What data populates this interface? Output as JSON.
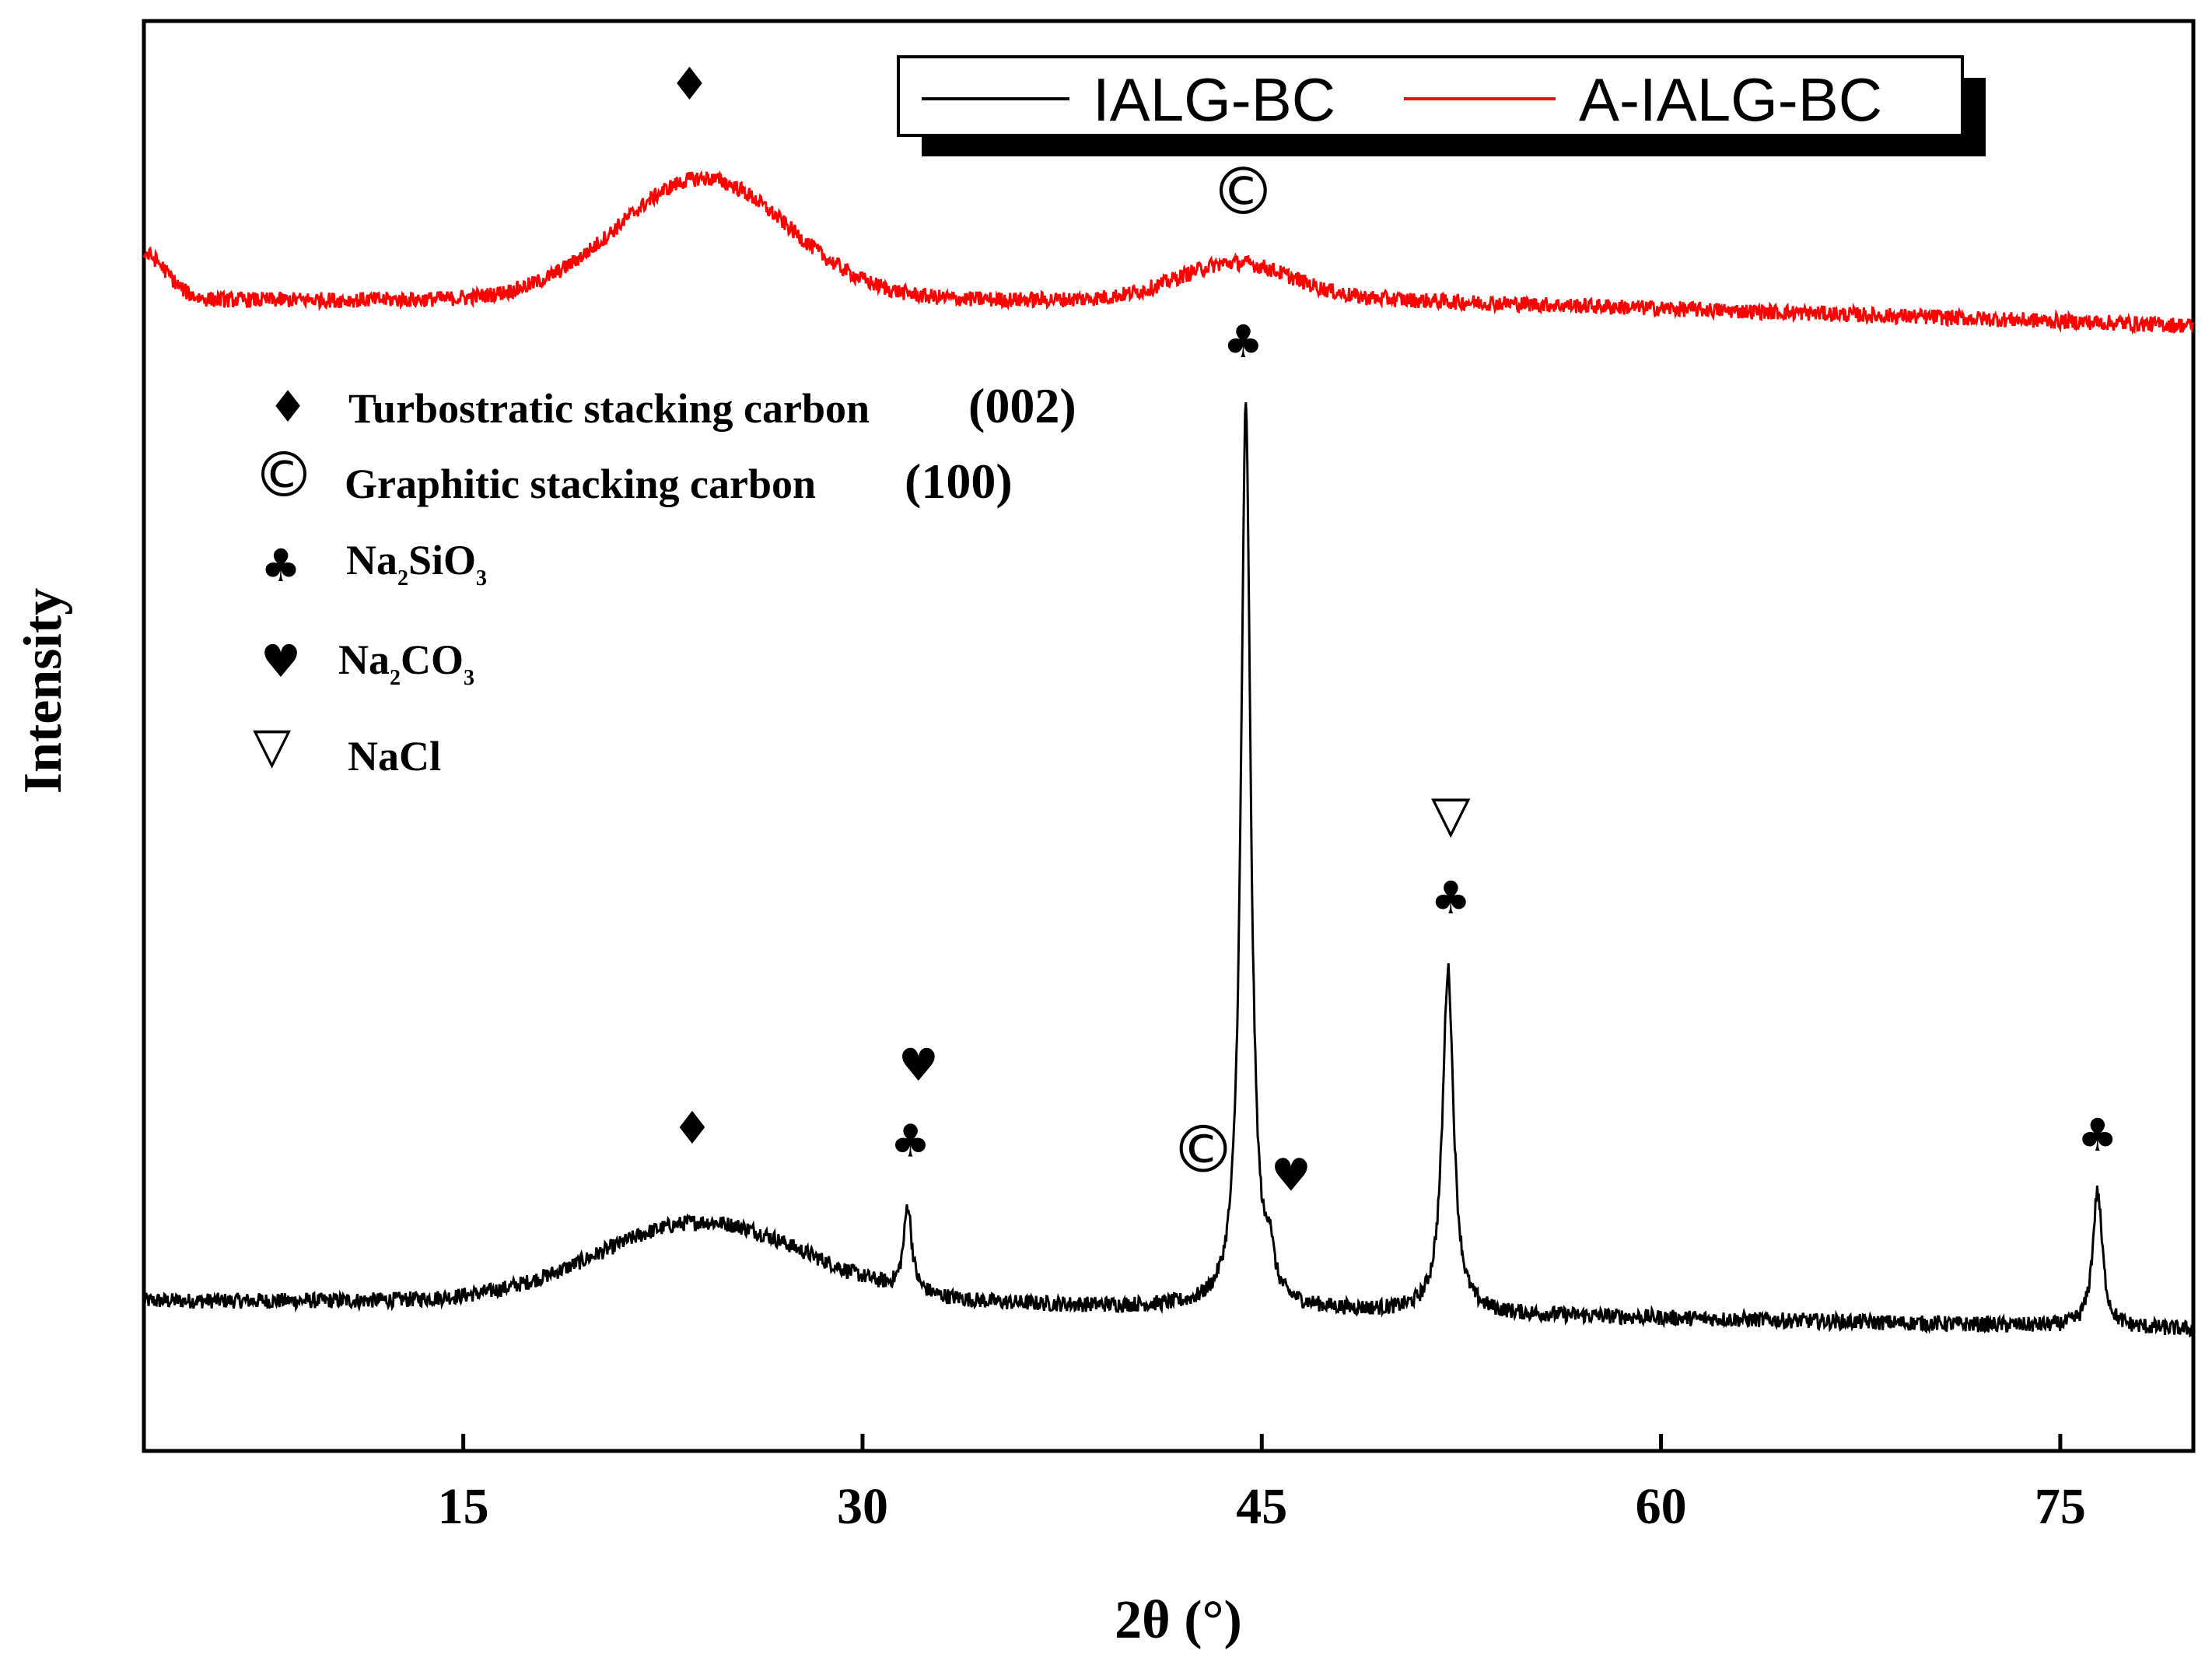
{
  "chart_data": {
    "type": "line",
    "title": "",
    "xlabel": "2θ (°)",
    "ylabel": "Intensity",
    "xlim": [
      3,
      80
    ],
    "ylim": [
      0,
      100
    ],
    "x_ticks": [
      15,
      30,
      45,
      60,
      75
    ],
    "x_tick_labels": [
      "15",
      "30",
      "45",
      "60",
      "75"
    ],
    "legend": {
      "placement": "top-right",
      "entries": [
        {
          "name": "IALG-BC",
          "color": "#000000"
        },
        {
          "name": "A-IALG-BC",
          "color": "#ff0000"
        }
      ]
    },
    "series": [
      {
        "name": "IALG-BC",
        "color": "#000000",
        "baseline": 10.5,
        "tail_slope": -0.04,
        "humps": [
          {
            "center": 24,
            "height": 5.5,
            "width": 5.5
          }
        ],
        "peaks": [
          {
            "x": 31.7,
            "height": 6.0,
            "width": 0.18
          },
          {
            "x": 44.4,
            "height": 63.0,
            "width": 0.22
          },
          {
            "x": 45.3,
            "height": 3.0,
            "width": 0.15
          },
          {
            "x": 52.0,
            "height": 24.0,
            "width": 0.25
          },
          {
            "x": 76.4,
            "height": 9.5,
            "width": 0.22
          }
        ]
      },
      {
        "name": "A-IALG-BC",
        "color": "#ff0000",
        "baseline": 80.5,
        "humps": [
          {
            "center": 24,
            "height": 8.5,
            "width": 4.5
          },
          {
            "center": 44,
            "height": 2.6,
            "width": 3.0
          }
        ]
      }
    ],
    "annotations": [
      {
        "symbol": "♦",
        "name": "turbostratic-marker",
        "x": 23.5,
        "y": 94.5
      },
      {
        "symbol": "©",
        "name": "graphitic-marker",
        "x": 44.3,
        "y": 86.5
      },
      {
        "symbol": "♣",
        "name": "na2sio3-marker",
        "x": 44.3,
        "y": 76.5
      },
      {
        "symbol": "▽",
        "name": "nacl-marker",
        "x": 52.1,
        "y": 43.3
      },
      {
        "symbol": "♣",
        "name": "na2sio3-marker",
        "x": 52.1,
        "y": 37.6
      },
      {
        "symbol": "♥",
        "name": "na2co3-marker",
        "x": 32.1,
        "y": 25.9
      },
      {
        "symbol": "♣",
        "name": "na2sio3-marker",
        "x": 31.8,
        "y": 20.6
      },
      {
        "symbol": "♦",
        "name": "turbostratic-marker",
        "x": 23.6,
        "y": 21.5
      },
      {
        "symbol": "©",
        "name": "graphitic-marker",
        "x": 42.8,
        "y": 19.5
      },
      {
        "symbol": "♥",
        "name": "na2co3-marker",
        "x": 46.1,
        "y": 18.2
      },
      {
        "symbol": "♣",
        "name": "na2sio3-marker",
        "x": 76.4,
        "y": 21.0
      }
    ]
  },
  "phase_key": [
    {
      "symbol": "♦",
      "icon": "diamond-icon",
      "label": "Turbostratic stacking carbon",
      "miller": "(002)"
    },
    {
      "symbol": "©",
      "icon": "circled-c-icon",
      "label": "Graphitic stacking carbon",
      "miller": "(100)"
    },
    {
      "symbol": "♣",
      "icon": "club-icon",
      "formula_parts": [
        "Na",
        "2",
        "SiO",
        "3"
      ]
    },
    {
      "symbol": "♥",
      "icon": "heart-icon",
      "formula_parts": [
        "Na",
        "2",
        "CO",
        "3"
      ]
    },
    {
      "symbol": "▽",
      "icon": "triangle-down-icon",
      "formula_parts": [
        "NaCl"
      ]
    }
  ]
}
